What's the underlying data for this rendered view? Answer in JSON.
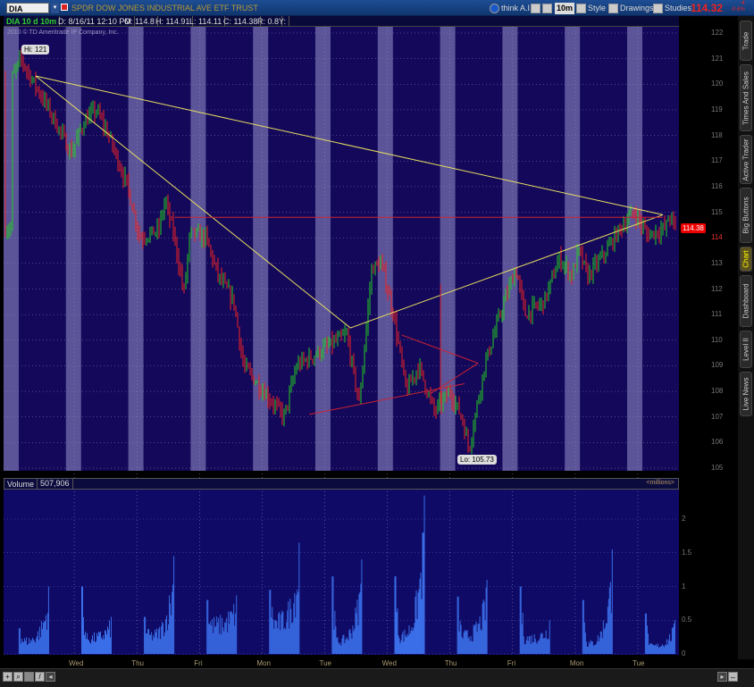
{
  "header": {
    "symbol": "DIA",
    "description": "SPDR DOW JONES INDUSTRIAL AVE ETF TRUST",
    "think_ai": "think A.I.",
    "timeframe": "10m",
    "style": "Style",
    "drawings": "Drawings",
    "studies": "Studies",
    "last_price": "114.32",
    "change_top": "-4",
    "change_bottom": "-0.6%"
  },
  "infobar": {
    "period": "DIA 10 d 10m",
    "date": "D: 8/16/11 12:10 PM",
    "open": "O: 114.8",
    "high": "H: 114.91",
    "low": "L: 114.11",
    "close": "C: 114.38",
    "range": "R: 0.8",
    "y": "Y:"
  },
  "copyright": "2010 © TD Ameritrade IP Company, Inc.",
  "sidebar": {
    "tabs": [
      "Trade",
      "Times And Sales",
      "Active Trader",
      "Big Buttons",
      "Chart",
      "Dashboard",
      "Level II",
      "Live News"
    ],
    "active": "Chart"
  },
  "volume": {
    "label": "Volume",
    "value": "507,906",
    "units": "<millions>"
  },
  "colors": {
    "light_band": "#5b5498",
    "dark_band": "#14085a",
    "up": "#22cc22",
    "down": "#ee2222",
    "trendline": "#e8e060",
    "drawing_red": "#cc2233",
    "volume_bar": "#3a6ee8"
  },
  "chart_data": [
    {
      "type": "line",
      "title": "DIA 10 d 10m",
      "x_tick_labels": [
        "Wed",
        "Thu",
        "Fri",
        "Mon",
        "Tue",
        "Wed",
        "Thu",
        "Fri",
        "Mon",
        "Tue"
      ],
      "y_tick_labels": [
        "105",
        "106",
        "107",
        "108",
        "109",
        "110",
        "111",
        "112",
        "113",
        "114",
        "115",
        "116",
        "117",
        "118",
        "119",
        "120",
        "121",
        "122"
      ],
      "ylim": [
        105,
        122
      ],
      "current_price_badge": "114.38",
      "hi_label": "Hi: 121",
      "lo_label": "Lo: 105.73",
      "price_path_day_price": [
        [
          0,
          120.2
        ],
        [
          0.15,
          121
        ],
        [
          0.3,
          120.3
        ],
        [
          0.6,
          119
        ],
        [
          0.95,
          117.3
        ],
        [
          1.15,
          118.5
        ],
        [
          1.35,
          119
        ],
        [
          1.55,
          118
        ],
        [
          1.85,
          116
        ],
        [
          2.05,
          114
        ],
        [
          2.35,
          114.3
        ],
        [
          2.45,
          115.5
        ],
        [
          2.6,
          114
        ],
        [
          2.75,
          111.8
        ],
        [
          2.85,
          114.2
        ],
        [
          3.1,
          114
        ],
        [
          3.3,
          112.5
        ],
        [
          3.55,
          111.5
        ],
        [
          3.7,
          109
        ],
        [
          4.35,
          107
        ],
        [
          4.55,
          109
        ],
        [
          5.35,
          110.2
        ],
        [
          5.55,
          107.5
        ],
        [
          5.75,
          112.8
        ],
        [
          5.9,
          113
        ],
        [
          6.1,
          111
        ],
        [
          6.3,
          108
        ],
        [
          6.5,
          109
        ],
        [
          6.75,
          107.2
        ],
        [
          7.0,
          108
        ],
        [
          7.2,
          106.9
        ],
        [
          7.3,
          105.73
        ],
        [
          7.55,
          109
        ],
        [
          7.8,
          111
        ],
        [
          8.05,
          112.8
        ],
        [
          8.2,
          111
        ],
        [
          8.5,
          111.5
        ],
        [
          8.75,
          113.2
        ],
        [
          8.95,
          112.5
        ],
        [
          9.05,
          113.5
        ],
        [
          9.2,
          112.5
        ],
        [
          9.5,
          113.5
        ],
        [
          9.75,
          114.5
        ],
        [
          9.95,
          115
        ],
        [
          10.15,
          114.1
        ],
        [
          10.45,
          114.4
        ],
        [
          10.5,
          114.9
        ],
        [
          10.6,
          114.38
        ]
      ],
      "trendlines": [
        {
          "color": "yellow",
          "points": [
            [
              0.385,
              120.32
            ],
            [
              10.4,
              114.9
            ]
          ]
        },
        {
          "color": "yellow",
          "points": [
            [
              0.385,
              120.32
            ],
            [
              5.41,
              110.48
            ],
            [
              10.4,
              114.9
            ]
          ]
        },
        {
          "color": "red",
          "points": [
            [
              2.6,
              114.8
            ],
            [
              10.4,
              114.8
            ]
          ]
        },
        {
          "color": "red",
          "points": [
            [
              4.75,
              107.1
            ],
            [
              7.23,
              108.3
            ]
          ]
        },
        {
          "color": "red",
          "points": [
            [
              6.23,
              110.2
            ],
            [
              7.45,
              109.1
            ]
          ]
        },
        {
          "color": "red",
          "points": [
            [
              6.68,
              107.9
            ],
            [
              7.45,
              109.1
            ]
          ]
        },
        {
          "color": "red",
          "points": [
            [
              6.85,
              112.2
            ],
            [
              6.85,
              107.5
            ]
          ]
        }
      ]
    },
    {
      "type": "bar",
      "title": "Volume",
      "ylabel": "<millions>",
      "y_tick_labels": [
        "0",
        "0.5",
        "1",
        "1.5",
        "2"
      ],
      "ylim": [
        0,
        2.5
      ],
      "session_peaks_millions": [
        [
          0.38,
          0.25,
          1.0
        ],
        [
          1.0,
          0.3,
          0.55
        ],
        [
          0.55,
          0.35,
          1.45
        ],
        [
          0.8,
          0.55,
          0.87
        ],
        [
          0.95,
          0.6,
          1.65
        ],
        [
          1.15,
          0.25,
          1.4
        ],
        [
          1.15,
          0.35,
          2.35
        ],
        [
          0.85,
          0.35,
          1.1
        ],
        [
          1.0,
          0.3,
          0.5
        ],
        [
          0.8,
          0.2,
          1.55
        ],
        [
          0.6,
          0.15,
          0.5
        ]
      ]
    }
  ]
}
